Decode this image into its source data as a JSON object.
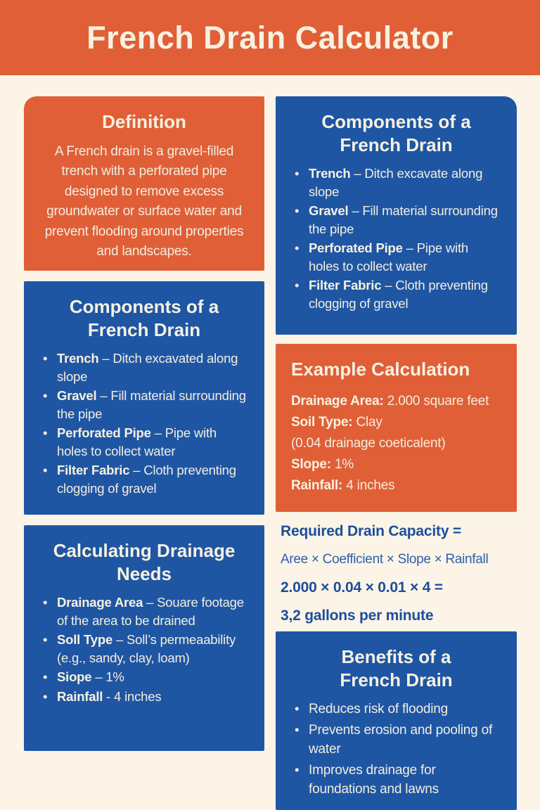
{
  "colors": {
    "orange": "#E05F37",
    "blue": "#1E56A4",
    "background_cream": "#FBF4E7",
    "card_text_cream": "#F3EDDF",
    "formula_blue_bold": "#1C4E9B",
    "formula_blue_regular": "#2E5FAD"
  },
  "header": {
    "title": "French Drain Calculator"
  },
  "definition": {
    "title": "Definition",
    "body": "A French drain is a gravel-filled trench with a perforated pipe designed to remove excess groundwater or surface water and prevent flooding around properties and landscapes."
  },
  "components_left": {
    "title": "Components of a French Drain",
    "items": [
      {
        "term": "Trench",
        "rest": " – Ditch excavated along slope"
      },
      {
        "term": "Gravel",
        "rest": " – Fill material surrounding the pipe"
      },
      {
        "term": "Perforated Pipe",
        "rest": " – Pipe with holes to collect water"
      },
      {
        "term": "Filter Fabric",
        "rest": " – Cloth preventing clogging of gravel"
      }
    ]
  },
  "calculating": {
    "title": "Calculating Drainage Needs",
    "items": [
      {
        "term": "Drainage Area",
        "rest": " – Souare footage of the area to be drained"
      },
      {
        "term": "Soll Type",
        "rest": " – Soll’s permeaability (e.g., sandy, clay, loam)"
      },
      {
        "term": "Siope",
        "rest": " – 1%"
      },
      {
        "term": "Rainfall",
        "rest": " - 4 inches"
      }
    ]
  },
  "components_right": {
    "title": "Components of a French Drain",
    "items": [
      {
        "term": "Trench",
        "rest": " – Ditch excavate along slope"
      },
      {
        "term": "Gravel",
        "rest": " – Fill material surrounding the pipe"
      },
      {
        "term": "Perforated Pipe",
        "rest": " – Pipe with holes to collect water"
      },
      {
        "term": "Filter Fabric",
        "rest": " – Cloth preventing clogging of gravel"
      }
    ]
  },
  "example": {
    "title": "Example Calculation",
    "lines": [
      {
        "label": "Drainage Area:",
        "value": " 2.000 square feet"
      },
      {
        "label": "Soil Type:",
        "value": " Clay"
      },
      {
        "label": "",
        "value": "(0.04 drainage coeticalent)"
      },
      {
        "label": "Slope:",
        "value": " 1%"
      },
      {
        "label": "Rainfall:",
        "value": " 4 inches"
      }
    ]
  },
  "formula": {
    "line1": "Required Drain Capacity =",
    "line2": "Aree × Coefficient × Slope × Rainfall",
    "line3": "2.000 × 0.04 × 0.01 × 4 =",
    "line4": "3,2 gallons per minute"
  },
  "benefits": {
    "title": "Benefits of a French Drain",
    "items": [
      "Reduces risk of flooding",
      "Prevents erosion and pooling of water",
      "Improves drainage for foundations and lawns"
    ]
  }
}
